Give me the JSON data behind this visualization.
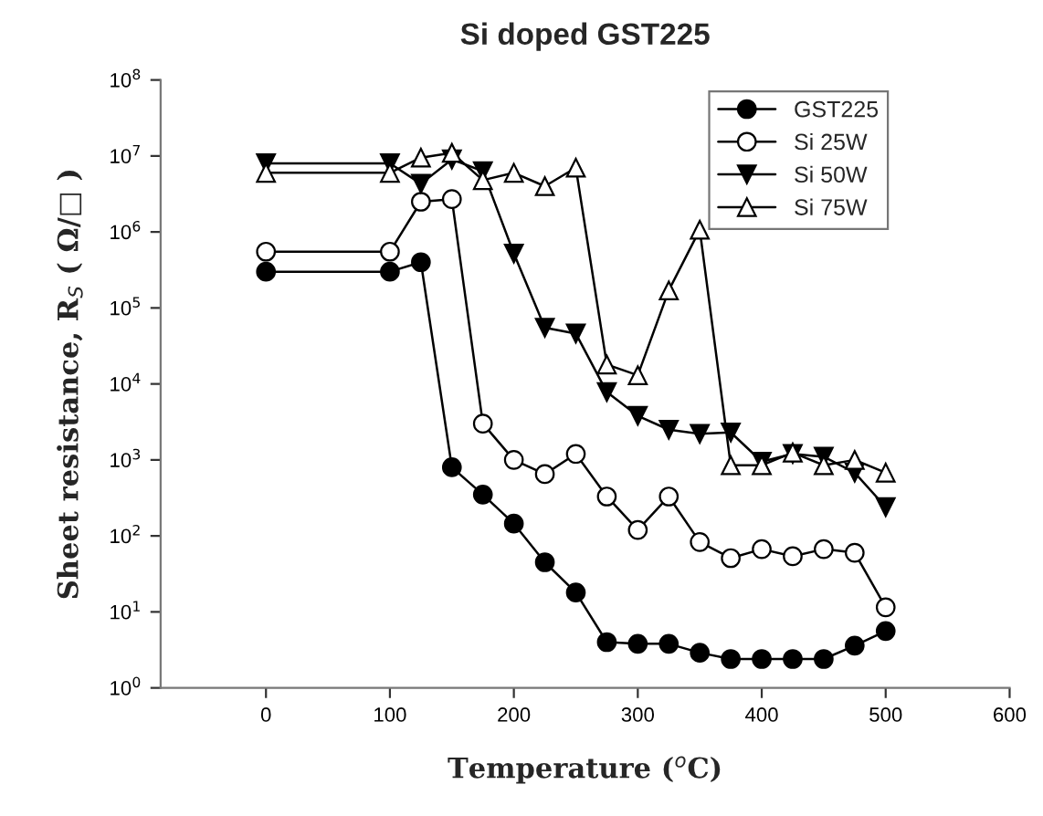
{
  "chart_data": {
    "type": "line",
    "title": "Si doped GST225",
    "xlabel": "Temperature ($^{o}$C)",
    "ylabel": "Sheet resistance, R$_{S}$ ( Ω/□ )",
    "x": [
      0,
      100,
      125,
      150,
      175,
      200,
      225,
      250,
      275,
      300,
      325,
      350,
      375,
      400,
      425,
      450,
      475,
      500
    ],
    "series": [
      {
        "name": "GST225",
        "color": "#000000",
        "marker": "circle",
        "values": [
          300000,
          300000,
          400000,
          800,
          350,
          145,
          45,
          18,
          4,
          3.8,
          3.8,
          2.9,
          2.4,
          2.4,
          2.4,
          2.4,
          3.6,
          5.6
        ]
      },
      {
        "name": "Si 25W",
        "color": "#000000",
        "marker": "circle_open",
        "values": [
          550000,
          550000,
          2500000,
          2700000,
          3000,
          1000,
          650,
          1200,
          330,
          120,
          330,
          83,
          51,
          67,
          54,
          67,
          60,
          11.5
        ]
      },
      {
        "name": "Si 50W",
        "color": "#000000",
        "marker": "triangle_down",
        "values": [
          8000000,
          8000000,
          4300000,
          9000000,
          6300000,
          520000,
          55000,
          46000,
          7800,
          3800,
          2500,
          2200,
          2300,
          950,
          1200,
          1100,
          680,
          240
        ]
      },
      {
        "name": "Si 75W",
        "color": "#000000",
        "marker": "triangle_open",
        "values": [
          6000000,
          6000000,
          9500000,
          11000000,
          4800000,
          6000000,
          4000000,
          7000000,
          18000,
          13000,
          170000,
          1070000,
          850,
          850,
          1250,
          850,
          1000,
          680
        ]
      }
    ],
    "log": "y",
    "xlim": [
      -85,
      600
    ],
    "xticks": [
      0,
      100,
      200,
      300,
      400,
      500,
      600
    ],
    "ylim": [
      1,
      100000000
    ],
    "yticks": [
      {
        "value": 1,
        "label": "10$^{0}$"
      },
      {
        "value": 10,
        "label": "10$^{1}$"
      },
      {
        "value": 100,
        "label": "10$^{2}$"
      },
      {
        "value": 1000,
        "label": "10$^{3}$"
      },
      {
        "value": 10000,
        "label": "10$^{4}$"
      },
      {
        "value": 100000,
        "label": "10$^{5}$"
      },
      {
        "value": 1000000,
        "label": "10$^{6}$"
      },
      {
        "value": 10000000,
        "label": "10$^{7}$"
      },
      {
        "value": 100000000,
        "label": "10$^{8}$"
      }
    ],
    "grid": false,
    "legend": "top right",
    "line_style": "solid"
  }
}
